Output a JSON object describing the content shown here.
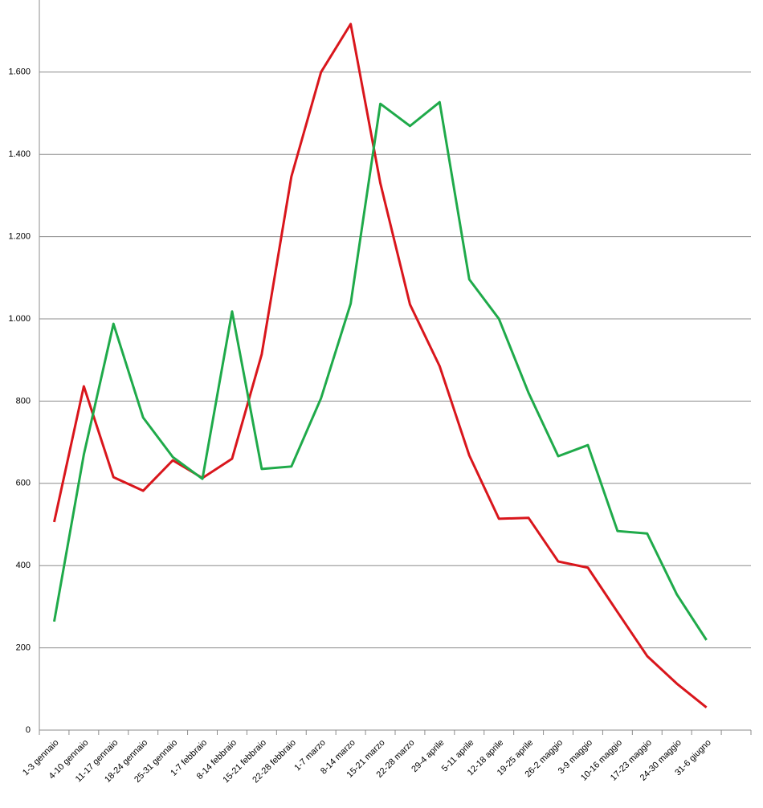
{
  "chart_data": {
    "type": "line",
    "categories": [
      "1-3 gennaio",
      "4-10 gennaio",
      "11-17 gennaio",
      "18-24 gennaio",
      "25-31 gennaio",
      "1-7 febbraio",
      "8-14 febbraio",
      "15-21 febbraio",
      "22-28 febbraio",
      "1-7 marzo",
      "8-14 marzo",
      "15-21 marzo",
      "22-28 marzo",
      "29-4 aprile",
      "5-11 aprile",
      "12-18 aprile",
      "19-25 aprile",
      "26-2 maggio",
      "3-9 maggio",
      "10-16 maggio",
      "17-23 maggio",
      "24-30 maggio",
      "31-6 giugno",
      null
    ],
    "series": [
      {
        "color": "#d9161c",
        "values": [
          506,
          836,
          615,
          582,
          656,
          613,
          660,
          914,
          1346,
          1600,
          1717,
          1330,
          1035,
          885,
          668,
          514,
          516,
          410,
          395,
          287,
          180,
          113,
          55,
          null
        ]
      },
      {
        "color": "#1faa4a",
        "values": [
          264,
          670,
          988,
          760,
          664,
          611,
          1018,
          635,
          641,
          807,
          1037,
          1523,
          1469,
          1527,
          1096,
          1000,
          820,
          666,
          693,
          484,
          478,
          330,
          219,
          null
        ]
      }
    ],
    "ylim": [
      0,
      1800
    ],
    "yticks": [
      0,
      200,
      400,
      600,
      800,
      {
        "value": 1000,
        "label": "1.000"
      },
      {
        "value": 1200,
        "label": "1.200"
      },
      {
        "value": 1400,
        "label": "1.400"
      },
      {
        "value": 1600,
        "label": "1.600"
      }
    ],
    "grid": true
  }
}
